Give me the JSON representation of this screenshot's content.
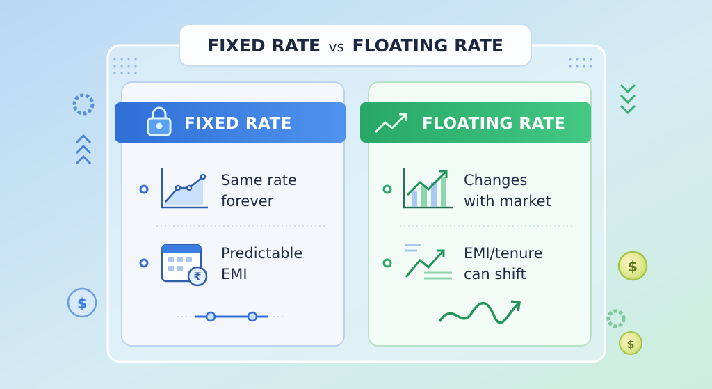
{
  "title": {
    "left": "FIXED RATE",
    "middle": "vs",
    "right": "FLOATING RATE"
  },
  "cards": [
    {
      "header": "FIXED RATE",
      "items": [
        {
          "lines": [
            "Same rate",
            "forever"
          ]
        },
        {
          "lines": [
            "Predictable",
            "EMI"
          ]
        }
      ]
    },
    {
      "header": "FLOATING RATE",
      "items": [
        {
          "lines": [
            "Changes",
            "with market"
          ]
        },
        {
          "lines": [
            "EMI/tenure",
            "can shift"
          ]
        }
      ]
    }
  ],
  "symbols": {
    "dollar": "$",
    "rupee": "₹"
  }
}
